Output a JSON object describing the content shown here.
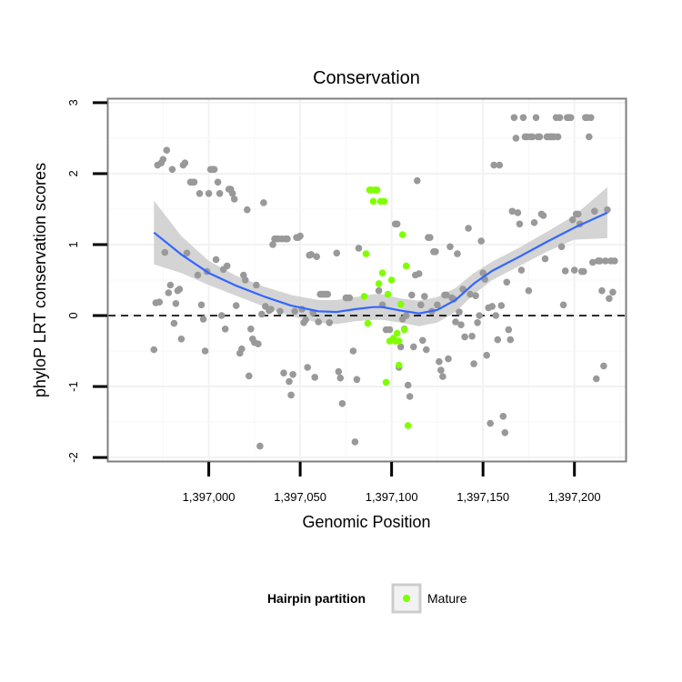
{
  "chart_data": {
    "type": "scatter",
    "title": "Conservation",
    "xlabel": "Genomic Position",
    "ylabel": "phyloP LRT conservation scores",
    "xlim": [
      1396945,
      1397228
    ],
    "ylim": [
      -2.05,
      3.05
    ],
    "x_ticks": [
      1397000,
      1397050,
      1397100,
      1397150,
      1397200
    ],
    "x_tick_labels": [
      "1,397,000",
      "1,397,050",
      "1,397,100",
      "1,397,150",
      "1,397,200"
    ],
    "y_ticks": [
      -2,
      -1,
      0,
      1,
      2,
      3
    ],
    "y_tick_labels": [
      "-2",
      "-1",
      "0",
      "1",
      "2",
      "3"
    ],
    "grid": true,
    "reference_line": {
      "y": 0,
      "style": "dashed"
    },
    "legend": {
      "title": "Hairpin partition",
      "placement": "bottom",
      "entries": [
        {
          "label": "Mature",
          "color": "#7fff00"
        }
      ]
    },
    "series": [
      {
        "name": "Hairpin",
        "color": "#999999",
        "points": [
          [
            1396970,
            -0.48
          ],
          [
            1396971,
            0.18
          ],
          [
            1396972,
            2.12
          ],
          [
            1396973,
            0.19
          ],
          [
            1396974,
            2.15
          ],
          [
            1396975,
            2.2
          ],
          [
            1396976,
            0.89
          ],
          [
            1396977,
            2.33
          ],
          [
            1396978,
            0.32
          ],
          [
            1396979,
            0.43
          ],
          [
            1396980,
            2.06
          ],
          [
            1396981,
            -0.11
          ],
          [
            1396982,
            0.17
          ],
          [
            1396983,
            0.35
          ],
          [
            1396984,
            0.37
          ],
          [
            1396985,
            -0.33
          ],
          [
            1396986,
            2.12
          ],
          [
            1396987,
            2.15
          ],
          [
            1396988,
            0.88
          ],
          [
            1396990,
            1.88
          ],
          [
            1396991,
            1.88
          ],
          [
            1396992,
            1.88
          ],
          [
            1396994,
            0.57
          ],
          [
            1396995,
            1.72
          ],
          [
            1396996,
            0.15
          ],
          [
            1396997,
            -0.05
          ],
          [
            1396998,
            -0.5
          ],
          [
            1396999,
            0.62
          ],
          [
            1397000,
            1.72
          ],
          [
            1397001,
            2.06
          ],
          [
            1397002,
            2.06
          ],
          [
            1397003,
            2.06
          ],
          [
            1397004,
            0.79
          ],
          [
            1397005,
            1.88
          ],
          [
            1397006,
            1.72
          ],
          [
            1397007,
            0.0
          ],
          [
            1397008,
            0.65
          ],
          [
            1397009,
            -0.19
          ],
          [
            1397010,
            0.7
          ],
          [
            1397011,
            1.78
          ],
          [
            1397012,
            1.78
          ],
          [
            1397013,
            1.72
          ],
          [
            1397014,
            1.64
          ],
          [
            1397015,
            0.14
          ],
          [
            1397017,
            -0.53
          ],
          [
            1397018,
            -0.47
          ],
          [
            1397019,
            0.57
          ],
          [
            1397020,
            0.5
          ],
          [
            1397021,
            1.49
          ],
          [
            1397022,
            -0.85
          ],
          [
            1397023,
            -0.19
          ],
          [
            1397024,
            -0.33
          ],
          [
            1397025,
            -0.38
          ],
          [
            1397026,
            0.43
          ],
          [
            1397027,
            -0.4
          ],
          [
            1397028,
            -1.84
          ],
          [
            1397029,
            0.02
          ],
          [
            1397030,
            1.59
          ],
          [
            1397031,
            0.13
          ],
          [
            1397033,
            0.07
          ],
          [
            1397034,
            0.09
          ],
          [
            1397035,
            1.0
          ],
          [
            1397036,
            1.08
          ],
          [
            1397037,
            1.08
          ],
          [
            1397038,
            1.08
          ],
          [
            1397039,
            0.06
          ],
          [
            1397040,
            1.08
          ],
          [
            1397041,
            -0.81
          ],
          [
            1397042,
            1.08
          ],
          [
            1397043,
            1.08
          ],
          [
            1397044,
            -0.93
          ],
          [
            1397045,
            -1.12
          ],
          [
            1397046,
            -0.83
          ],
          [
            1397047,
            0.06
          ],
          [
            1397048,
            1.1
          ],
          [
            1397049,
            1.1
          ],
          [
            1397050,
            1.12
          ],
          [
            1397051,
            0.09
          ],
          [
            1397052,
            -0.1
          ],
          [
            1397053,
            -0.06
          ],
          [
            1397054,
            -0.73
          ],
          [
            1397055,
            0.85
          ],
          [
            1397056,
            0.86
          ],
          [
            1397057,
            0.04
          ],
          [
            1397058,
            -0.87
          ],
          [
            1397059,
            0.83
          ],
          [
            1397060,
            -0.09
          ],
          [
            1397061,
            0.3
          ],
          [
            1397062,
            0.3
          ],
          [
            1397063,
            0.3
          ],
          [
            1397064,
            0.3
          ],
          [
            1397065,
            0.3
          ],
          [
            1397066,
            -0.1
          ],
          [
            1397070,
            0.88
          ],
          [
            1397071,
            -0.79
          ],
          [
            1397072,
            -0.88
          ],
          [
            1397073,
            -1.24
          ],
          [
            1397075,
            0.25
          ],
          [
            1397076,
            0.25
          ],
          [
            1397077,
            0.25
          ],
          [
            1397079,
            -0.5
          ],
          [
            1397080,
            -1.78
          ],
          [
            1397081,
            -0.9
          ],
          [
            1397082,
            0.95
          ],
          [
            1397093,
            0.35
          ],
          [
            1397095,
            0.15
          ],
          [
            1397097,
            -0.2
          ],
          [
            1397099,
            -0.2
          ],
          [
            1397102,
            1.29
          ],
          [
            1397103,
            1.29
          ],
          [
            1397104,
            -0.73
          ],
          [
            1397105,
            -0.44
          ],
          [
            1397106,
            -0.05
          ],
          [
            1397107,
            -0.19
          ],
          [
            1397108,
            0.0
          ],
          [
            1397109,
            -0.98
          ],
          [
            1397110,
            -1.14
          ],
          [
            1397111,
            0.29
          ],
          [
            1397112,
            -0.44
          ],
          [
            1397113,
            0.57
          ],
          [
            1397114,
            1.9
          ],
          [
            1397115,
            0.59
          ],
          [
            1397116,
            0.15
          ],
          [
            1397117,
            -0.35
          ],
          [
            1397118,
            0.27
          ],
          [
            1397119,
            -0.48
          ],
          [
            1397120,
            1.1
          ],
          [
            1397121,
            1.1
          ],
          [
            1397122,
            0.06
          ],
          [
            1397123,
            0.9
          ],
          [
            1397124,
            0.9
          ],
          [
            1397125,
            0.15
          ],
          [
            1397126,
            -0.65
          ],
          [
            1397127,
            -0.77
          ],
          [
            1397128,
            -0.86
          ],
          [
            1397129,
            0.29
          ],
          [
            1397130,
            0.29
          ],
          [
            1397131,
            -0.61
          ],
          [
            1397132,
            0.97
          ],
          [
            1397133,
            0.25
          ],
          [
            1397134,
            0.23
          ],
          [
            1397135,
            -0.09
          ],
          [
            1397136,
            0.87
          ],
          [
            1397137,
            0.05
          ],
          [
            1397138,
            -0.13
          ],
          [
            1397139,
            0.37
          ],
          [
            1397140,
            -0.3
          ],
          [
            1397142,
            1.23
          ],
          [
            1397143,
            0.3
          ],
          [
            1397144,
            -0.29
          ],
          [
            1397145,
            -0.68
          ],
          [
            1397146,
            0.28
          ],
          [
            1397147,
            -0.1
          ],
          [
            1397148,
            0.0
          ],
          [
            1397149,
            1.05
          ],
          [
            1397150,
            0.6
          ],
          [
            1397151,
            0.51
          ],
          [
            1397152,
            -0.56
          ],
          [
            1397153,
            0.11
          ],
          [
            1397154,
            -1.52
          ],
          [
            1397155,
            0.13
          ],
          [
            1397156,
            2.12
          ],
          [
            1397157,
            0.0
          ],
          [
            1397158,
            -0.34
          ],
          [
            1397159,
            2.12
          ],
          [
            1397160,
            0.14
          ],
          [
            1397161,
            -1.42
          ],
          [
            1397162,
            -1.65
          ],
          [
            1397163,
            0.47
          ],
          [
            1397164,
            -0.2
          ],
          [
            1397165,
            -0.34
          ],
          [
            1397166,
            1.47
          ],
          [
            1397167,
            2.79
          ],
          [
            1397168,
            2.5
          ],
          [
            1397169,
            1.45
          ],
          [
            1397170,
            1.29
          ],
          [
            1397171,
            0.64
          ],
          [
            1397172,
            2.79
          ],
          [
            1397173,
            2.52
          ],
          [
            1397174,
            2.52
          ],
          [
            1397175,
            0.35
          ],
          [
            1397176,
            2.52
          ],
          [
            1397177,
            2.52
          ],
          [
            1397178,
            1.31
          ],
          [
            1397179,
            2.79
          ],
          [
            1397180,
            2.52
          ],
          [
            1397181,
            2.52
          ],
          [
            1397182,
            1.43
          ],
          [
            1397183,
            1.41
          ],
          [
            1397184,
            0.8
          ],
          [
            1397185,
            2.52
          ],
          [
            1397186,
            2.52
          ],
          [
            1397187,
            2.52
          ],
          [
            1397188,
            2.52
          ],
          [
            1397189,
            2.52
          ],
          [
            1397190,
            2.79
          ],
          [
            1397191,
            2.52
          ],
          [
            1397192,
            2.79
          ],
          [
            1397193,
            0.97
          ],
          [
            1397194,
            0.15
          ],
          [
            1397195,
            0.63
          ],
          [
            1397196,
            2.79
          ],
          [
            1397197,
            2.79
          ],
          [
            1397198,
            2.79
          ],
          [
            1397199,
            1.35
          ],
          [
            1397200,
            0.64
          ],
          [
            1397201,
            1.43
          ],
          [
            1397202,
            1.43
          ],
          [
            1397203,
            1.29
          ],
          [
            1397204,
            0.62
          ],
          [
            1397205,
            0.62
          ],
          [
            1397206,
            2.79
          ],
          [
            1397207,
            2.79
          ],
          [
            1397208,
            2.52
          ],
          [
            1397209,
            2.79
          ],
          [
            1397210,
            0.75
          ],
          [
            1397211,
            1.47
          ],
          [
            1397212,
            -0.89
          ],
          [
            1397213,
            0.77
          ],
          [
            1397214,
            0.77
          ],
          [
            1397215,
            0.35
          ],
          [
            1397216,
            -0.71
          ],
          [
            1397217,
            0.77
          ],
          [
            1397218,
            1.49
          ],
          [
            1397219,
            0.24
          ],
          [
            1397220,
            0.77
          ],
          [
            1397221,
            0.33
          ],
          [
            1397222,
            0.77
          ]
        ]
      },
      {
        "name": "Mature",
        "color": "#7fff00",
        "points": [
          [
            1397085,
            0.27
          ],
          [
            1397086,
            0.87
          ],
          [
            1397087,
            -0.11
          ],
          [
            1397088,
            1.77
          ],
          [
            1397089,
            1.77
          ],
          [
            1397090,
            1.61
          ],
          [
            1397091,
            1.77
          ],
          [
            1397092,
            1.77
          ],
          [
            1397093,
            0.45
          ],
          [
            1397094,
            1.61
          ],
          [
            1397095,
            0.6
          ],
          [
            1397096,
            1.61
          ],
          [
            1397097,
            -0.94
          ],
          [
            1397098,
            0.3
          ],
          [
            1397099,
            -0.36
          ],
          [
            1397100,
            0.5
          ],
          [
            1397101,
            -0.32
          ],
          [
            1397102,
            -0.36
          ],
          [
            1397103,
            -0.25
          ],
          [
            1397104,
            -0.36
          ],
          [
            1397104,
            -0.7
          ],
          [
            1397105,
            0.16
          ],
          [
            1397106,
            1.14
          ],
          [
            1397107,
            -0.2
          ],
          [
            1397108,
            0.7
          ],
          [
            1397109,
            -1.55
          ]
        ]
      }
    ],
    "smooth": {
      "name": "loess",
      "color": "#3366ff",
      "band_color": "#cccccc",
      "x": [
        1396970,
        1396985,
        1397000,
        1397015,
        1397030,
        1397045,
        1397060,
        1397070,
        1397080,
        1397090,
        1397095,
        1397105,
        1397115,
        1397125,
        1397135,
        1397145,
        1397155,
        1397170,
        1397185,
        1397200,
        1397218
      ],
      "y": [
        1.17,
        0.86,
        0.6,
        0.42,
        0.27,
        0.14,
        0.06,
        0.05,
        0.09,
        0.12,
        0.12,
        0.07,
        0.03,
        0.08,
        0.22,
        0.45,
        0.63,
        0.83,
        1.04,
        1.24,
        1.45
      ],
      "lower": [
        0.72,
        0.6,
        0.43,
        0.28,
        0.13,
        -0.01,
        -0.1,
        -0.12,
        -0.08,
        -0.06,
        -0.06,
        -0.1,
        -0.15,
        -0.1,
        0.05,
        0.3,
        0.5,
        0.7,
        0.9,
        1.07,
        1.09
      ],
      "upper": [
        1.62,
        1.12,
        0.77,
        0.56,
        0.41,
        0.29,
        0.22,
        0.22,
        0.26,
        0.3,
        0.3,
        0.24,
        0.21,
        0.26,
        0.39,
        0.6,
        0.76,
        0.96,
        1.18,
        1.41,
        1.81
      ]
    }
  }
}
